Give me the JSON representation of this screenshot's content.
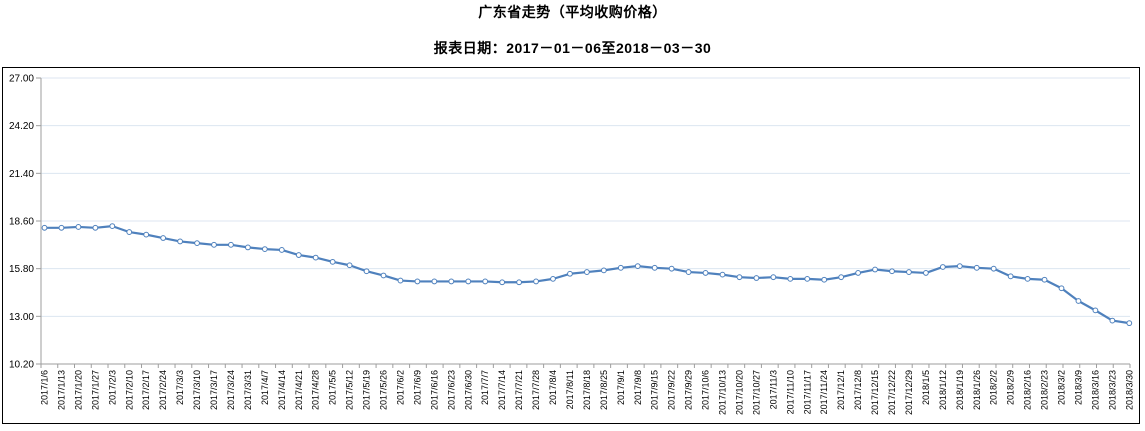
{
  "header": {
    "title": "广东省走势（平均收购价格）",
    "subtitle": "报表日期：2017－01－06至2018－03－30"
  },
  "chart_data": {
    "type": "line",
    "title": "广东省走势（平均收购价格）",
    "subtitle": "报表日期：2017－01－06至2018－03－30",
    "xlabel": "",
    "ylabel": "",
    "ylim": [
      10.2,
      27.0
    ],
    "yticks": [
      27.0,
      24.2,
      21.4,
      18.6,
      15.8,
      13.0,
      10.2
    ],
    "ytick_labels": [
      "27.00",
      "24.20",
      "21.40",
      "18.60",
      "15.80",
      "13.00",
      "10.20"
    ],
    "grid": true,
    "legend_position": "none",
    "x_label_rotation_deg": 90,
    "marker": "hollow-circle",
    "line_color": "#4f81bd",
    "gridline_color": "#dce6f1",
    "axis_color": "#9e9e9e",
    "text_color": "#000000",
    "categories": [
      "2017/1/6",
      "2017/1/13",
      "2017/1/20",
      "2017/1/27",
      "2017/2/3",
      "2017/2/10",
      "2017/2/17",
      "2017/2/24",
      "2017/3/3",
      "2017/3/10",
      "2017/3/17",
      "2017/3/24",
      "2017/3/31",
      "2017/4/7",
      "2017/4/14",
      "2017/4/21",
      "2017/4/28",
      "2017/5/5",
      "2017/5/12",
      "2017/5/19",
      "2017/5/26",
      "2017/6/2",
      "2017/6/9",
      "2017/6/16",
      "2017/6/23",
      "2017/6/30",
      "2017/7/7",
      "2017/7/14",
      "2017/7/21",
      "2017/7/28",
      "2017/8/4",
      "2017/8/11",
      "2017/8/18",
      "2017/8/25",
      "2017/9/1",
      "2017/9/8",
      "2017/9/15",
      "2017/9/22",
      "2017/9/29",
      "2017/10/6",
      "2017/10/13",
      "2017/10/20",
      "2017/10/27",
      "2017/11/3",
      "2017/11/10",
      "2017/11/17",
      "2017/11/24",
      "2017/12/1",
      "2017/12/8",
      "2017/12/15",
      "2017/12/22",
      "2017/12/29",
      "2018/1/5",
      "2018/1/12",
      "2018/1/19",
      "2018/1/26",
      "2018/2/2",
      "2018/2/9",
      "2018/2/16",
      "2018/2/23",
      "2018/3/2",
      "2018/3/9",
      "2018/3/16",
      "2018/3/23",
      "2018/3/30"
    ],
    "series": [
      {
        "name": "平均收购价格",
        "values": [
          18.2,
          18.2,
          18.25,
          18.2,
          18.3,
          17.95,
          17.8,
          17.6,
          17.4,
          17.3,
          17.2,
          17.2,
          17.05,
          16.95,
          16.9,
          16.6,
          16.45,
          16.2,
          16.0,
          15.65,
          15.4,
          15.1,
          15.05,
          15.05,
          15.05,
          15.05,
          15.05,
          15.0,
          15.0,
          15.05,
          15.2,
          15.5,
          15.6,
          15.7,
          15.85,
          15.95,
          15.85,
          15.8,
          15.6,
          15.55,
          15.45,
          15.3,
          15.25,
          15.3,
          15.2,
          15.2,
          15.15,
          15.3,
          15.55,
          15.75,
          15.65,
          15.6,
          15.55,
          15.9,
          15.95,
          15.85,
          15.8,
          15.35,
          15.2,
          15.15,
          14.65,
          13.9,
          13.35,
          12.75,
          12.6
        ]
      }
    ]
  }
}
